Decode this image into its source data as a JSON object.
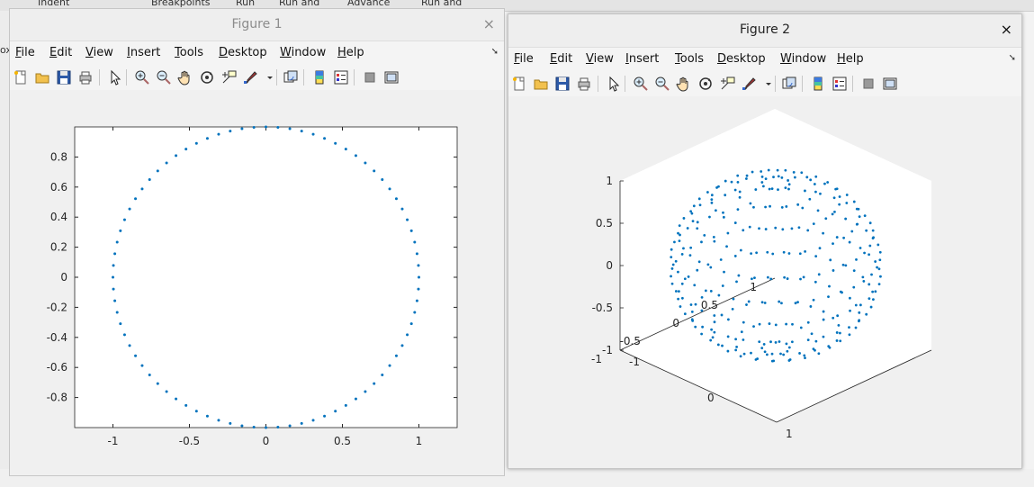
{
  "background": {
    "top_items": [
      "Indent",
      "Breakpoints",
      "Run",
      "Run and",
      "Advance",
      "Run and"
    ],
    "left_label": "ox"
  },
  "menu_items": [
    "File",
    "Edit",
    "View",
    "Insert",
    "Tools",
    "Desktop",
    "Window",
    "Help"
  ],
  "toolbar_icons": [
    "new-figure-icon",
    "open-file-icon",
    "save-icon",
    "print-icon",
    "pointer-icon",
    "zoom-in-icon",
    "zoom-out-icon",
    "pan-icon",
    "rotate-icon",
    "data-cursor-icon",
    "brush-icon",
    "dropdown-arrow-icon",
    "link-plot-icon",
    "colorbar-icon",
    "legend-icon",
    "hide-plot-tools-icon",
    "show-plot-tools-icon"
  ],
  "figure1": {
    "title": "Figure 1",
    "close_label": "×",
    "chart_data": {
      "type": "scatter",
      "title": "",
      "xlabel": "",
      "ylabel": "",
      "xlim": [
        -1.25,
        1.25
      ],
      "ylim": [
        -1,
        1
      ],
      "xticks": [
        "-1",
        "-0.5",
        "0",
        "0.5",
        "1"
      ],
      "xtick_values": [
        -1,
        -0.5,
        0,
        0.5,
        1
      ],
      "yticks": [
        "0.8",
        "0.6",
        "0.4",
        "0.2",
        "0",
        "-0.2",
        "-0.4",
        "-0.6",
        "-0.8"
      ],
      "ytick_values": [
        0.8,
        0.6,
        0.4,
        0.2,
        0,
        -0.2,
        -0.4,
        -0.6,
        -0.8
      ],
      "points_description": "unit circle sampled at 80 evenly spaced angles",
      "n_points": 80,
      "radius": 1,
      "marker_color": "#0072bd",
      "grid": false
    }
  },
  "figure2": {
    "title": "Figure 2",
    "close_label": "×",
    "chart_data": {
      "type": "scatter",
      "title": "",
      "xlabel": "",
      "ylabel": "",
      "zlabel": "",
      "view": "3-D isometric",
      "xlim": [
        -1,
        1
      ],
      "ylim": [
        -1,
        1
      ],
      "zlim": [
        -1,
        1
      ],
      "zticks": [
        "1",
        "0.5",
        "0",
        "-0.5",
        "-1"
      ],
      "ytick_labels": [
        "1",
        "0.5",
        "0",
        "-0.5",
        "-1"
      ],
      "xtick_labels": [
        "-1",
        "0",
        "1"
      ],
      "points_description": "points on unit sphere in latitude rings",
      "n_rings": 12,
      "points_per_ring": 40,
      "radius": 1,
      "marker_color": "#0072bd",
      "grid": false
    }
  }
}
